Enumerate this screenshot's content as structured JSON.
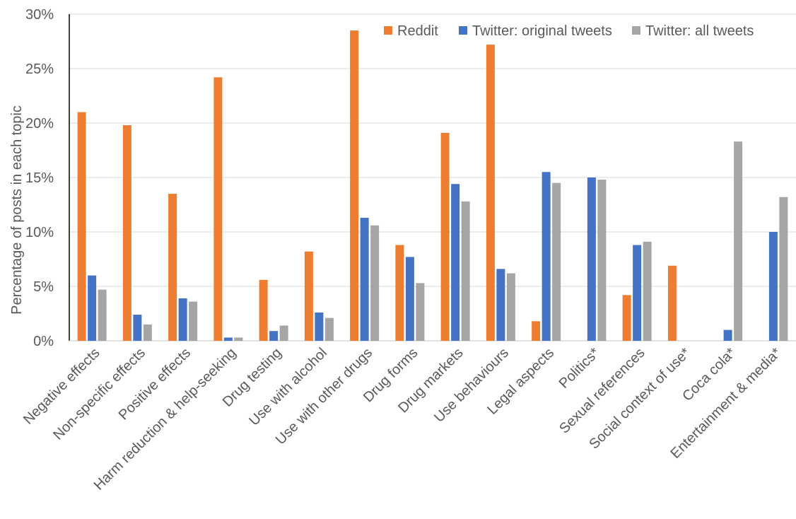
{
  "chart_data": {
    "type": "bar",
    "title": "",
    "xlabel": "",
    "ylabel": "Percentage of posts in each topic",
    "ylim": [
      0,
      30
    ],
    "yticks": [
      "0%",
      "5%",
      "10%",
      "15%",
      "20%",
      "25%",
      "30%"
    ],
    "ytick_values": [
      0,
      5,
      10,
      15,
      20,
      25,
      30
    ],
    "grid": true,
    "legend_position": "top-right",
    "categories": [
      "Negative effects",
      "Non-specific effects",
      "Positive effects",
      "Harm reduction & help-seeking",
      "Drug testing",
      "Use with alcohol",
      "Use with other drugs",
      "Drug forms",
      "Drug markets",
      "Use behaviours",
      "Legal aspects",
      "Politics*",
      "Sexual references",
      "Social context of use*",
      "Coca cola*",
      "Entertainment & media*"
    ],
    "series": [
      {
        "name": "Reddit",
        "color": "#ED7D31",
        "values": [
          21.0,
          19.8,
          13.5,
          24.2,
          5.6,
          8.2,
          28.5,
          8.8,
          19.1,
          27.2,
          1.8,
          0,
          4.2,
          6.9,
          0,
          0
        ]
      },
      {
        "name": "Twitter: original tweets",
        "color": "#4472C4",
        "values": [
          6.0,
          2.4,
          3.9,
          0.3,
          0.9,
          2.6,
          11.3,
          7.7,
          14.4,
          6.6,
          15.5,
          15.0,
          8.8,
          0,
          1.0,
          10.0
        ]
      },
      {
        "name": "Twitter: all tweets",
        "color": "#A5A5A5",
        "values": [
          4.7,
          1.5,
          3.6,
          0.3,
          1.4,
          2.1,
          10.6,
          5.3,
          12.8,
          6.2,
          14.5,
          14.8,
          9.1,
          0,
          18.3,
          13.2
        ]
      }
    ]
  }
}
